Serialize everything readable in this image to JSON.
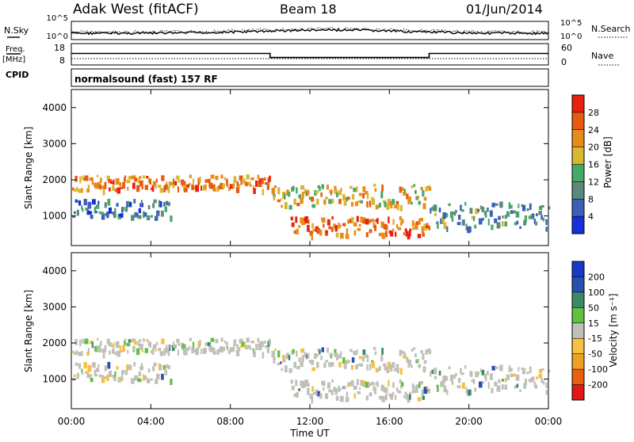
{
  "header": {
    "station": "Adak West (fitACF)",
    "beam": "Beam 18",
    "date": "01/Jun/2014"
  },
  "noise_panel": {
    "left_label": "N.Sky",
    "right_label": "N.Search",
    "left_ticks": [
      "10^5",
      "10^0"
    ],
    "right_ticks": [
      "10^5",
      "10^0"
    ]
  },
  "freq_panel": {
    "left_label_1": "Freq.",
    "left_label_2": "[MHz]",
    "right_label": "Nave",
    "left_ticks": [
      "18",
      "8"
    ],
    "right_ticks": [
      "60",
      "0"
    ]
  },
  "cpid": {
    "label": "CPID",
    "program": "normalsound (fast) 157 RF"
  },
  "x_ticks": [
    "00:00",
    "04:00",
    "08:00",
    "12:00",
    "16:00",
    "20:00",
    "00:00"
  ],
  "x_label": "Time UT",
  "power_panel": {
    "ylabel": "Slant Range [km]",
    "yticks": [
      "4000",
      "3000",
      "2000",
      "1000"
    ],
    "colorbar_label": "Power [dB]",
    "colorbar_ticks": [
      "28",
      "24",
      "20",
      "16",
      "12",
      "8",
      "4"
    ]
  },
  "velocity_panel": {
    "ylabel": "Slant Range [km]",
    "yticks": [
      "4000",
      "3000",
      "2000",
      "1000"
    ],
    "colorbar_label": "Velocity [m s⁻¹]",
    "colorbar_ticks": [
      "200",
      "100",
      "50",
      "15",
      "-15",
      "-50",
      "-100",
      "-200"
    ]
  },
  "colors": {
    "power_scale": [
      "#1530d8",
      "#3a60b8",
      "#5c8a7a",
      "#48a868",
      "#d8b830",
      "#e88c18",
      "#e85a10",
      "#e82010"
    ],
    "velocity_scale": [
      "#e01818",
      "#e86010",
      "#f0a020",
      "#f8c040",
      "#c0c0b8",
      "#60c040",
      "#3a8a68",
      "#2850b0",
      "#1838c8"
    ]
  },
  "chart_data": {
    "type": "heatmap",
    "title": "Adak West (fitACF) Beam 18 01/Jun/2014",
    "xlabel": "Time UT",
    "ylabel": "Slant Range [km]",
    "x_range_hours": [
      0,
      24
    ],
    "y_range_km": [
      180,
      4500
    ],
    "frequency_MHz": [
      {
        "start_hour": 0,
        "end_hour": 10,
        "value": 13
      },
      {
        "start_hour": 10,
        "end_hour": 18,
        "value": 10
      },
      {
        "start_hour": 18,
        "end_hour": 24,
        "value": 13
      }
    ],
    "nave": 6,
    "series": [
      {
        "name": "Power [dB]",
        "range": [
          0,
          30
        ]
      },
      {
        "name": "Velocity [m s⁻¹]",
        "range": [
          -250,
          250
        ]
      }
    ],
    "echo_bands": [
      {
        "start_hour": 0,
        "end_hour": 10,
        "range_km_start": 1750,
        "range_km_end": 2150,
        "power_dB": 22
      },
      {
        "start_hour": 0,
        "end_hour": 5,
        "range_km_start": 1000,
        "range_km_end": 1500,
        "power_dB": 8
      },
      {
        "start_hour": 10,
        "end_hour": 18,
        "range_km_start": 1300,
        "range_km_end": 1900,
        "power_dB": 18
      },
      {
        "start_hour": 11,
        "end_hour": 18,
        "range_km_start": 500,
        "range_km_end": 1000,
        "power_dB": 24
      },
      {
        "start_hour": 18,
        "end_hour": 24,
        "range_km_start": 700,
        "range_km_end": 1400,
        "power_dB": 10
      }
    ]
  }
}
